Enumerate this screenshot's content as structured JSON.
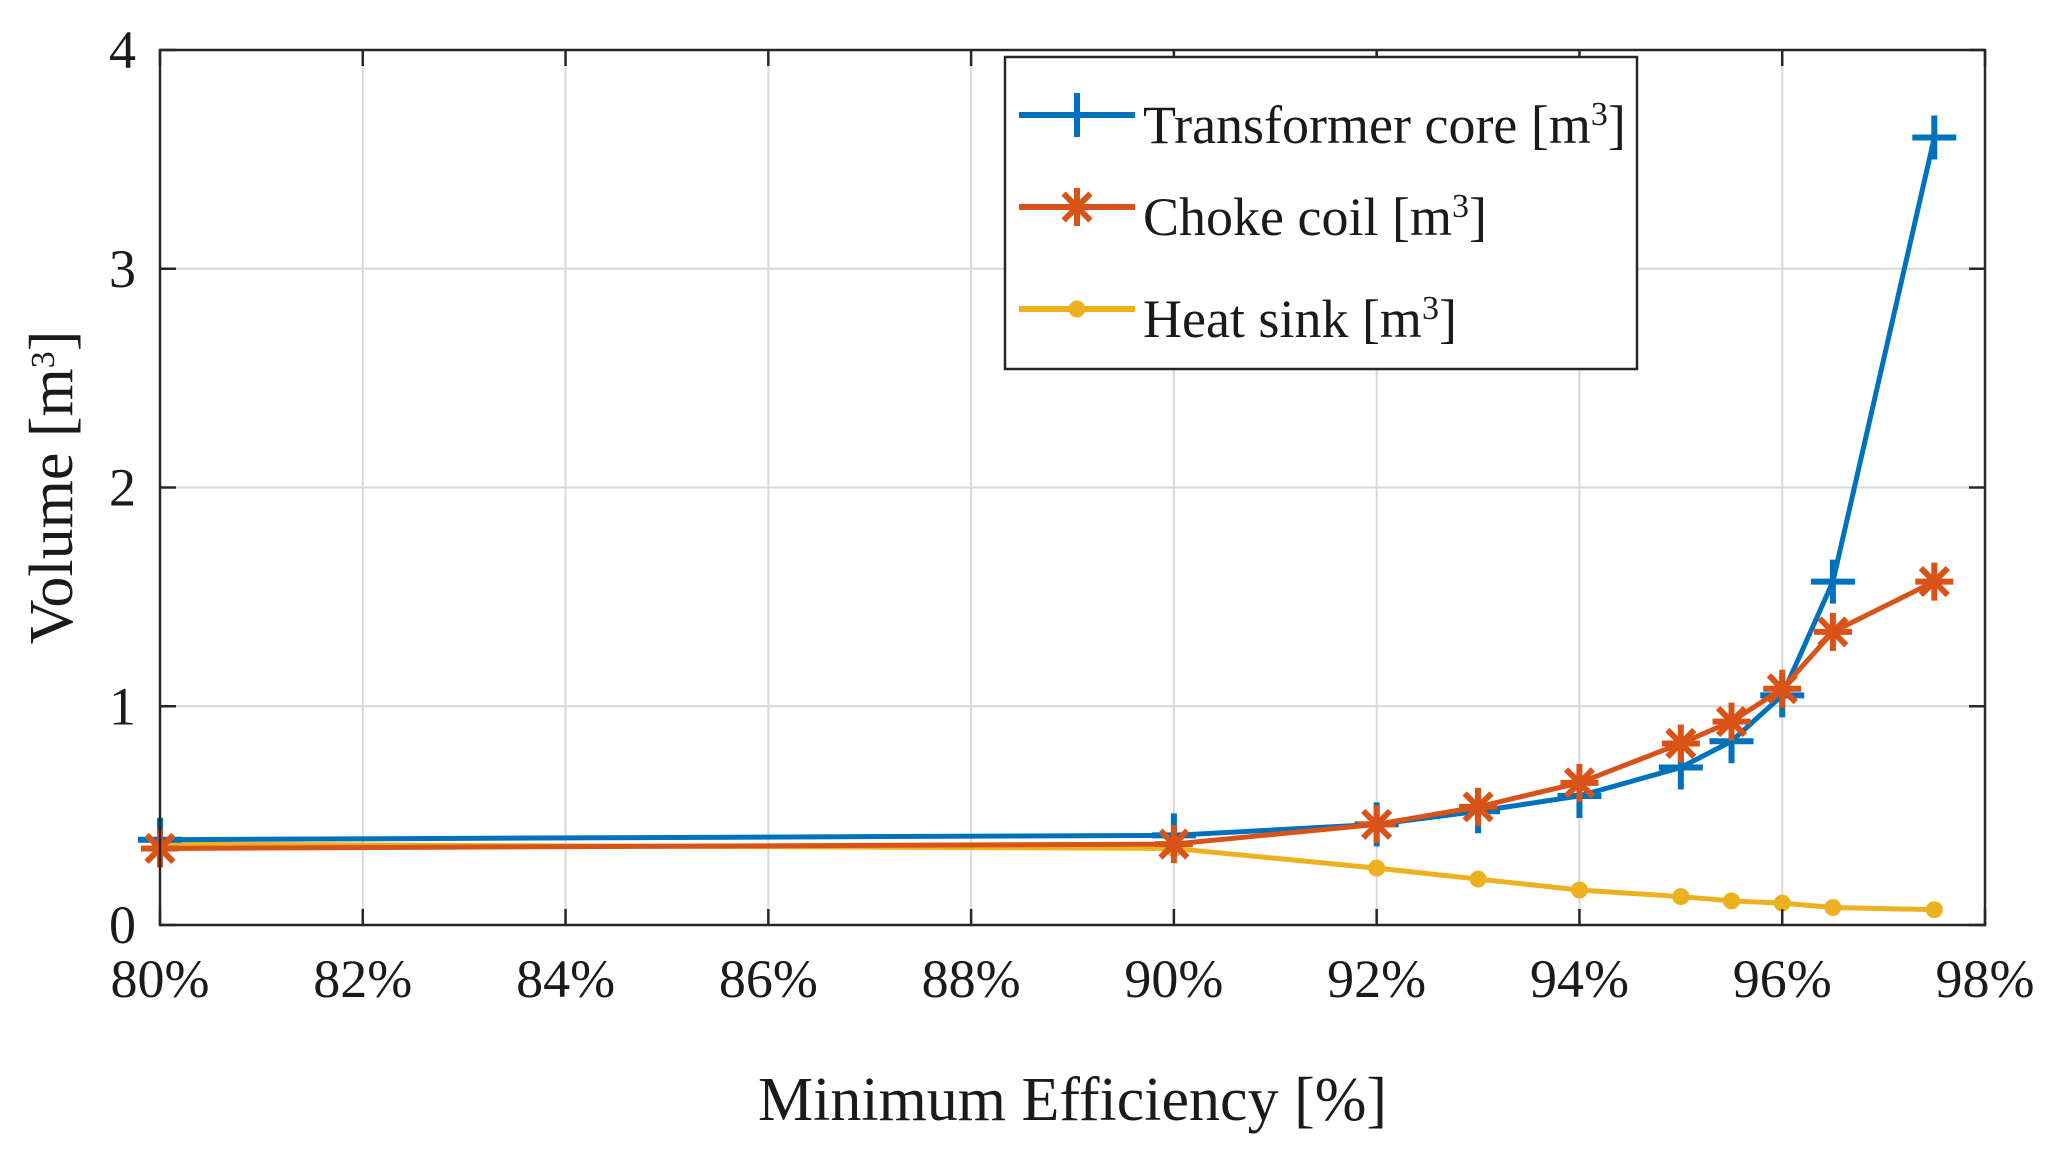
{
  "chart_data": {
    "type": "line",
    "title": "",
    "xlabel": "Minimum Efficiency [%]",
    "ylabel": "Volume [m",
    "ylabel_sup": "3",
    "ylabel_suffix": "]",
    "xlim": [
      80,
      98
    ],
    "ylim": [
      0,
      4
    ],
    "grid": true,
    "legend_position": "top-right",
    "x_ticks": [
      80,
      82,
      84,
      86,
      88,
      90,
      92,
      94,
      96,
      98
    ],
    "x_tick_labels": [
      "80%",
      "82%",
      "84%",
      "86%",
      "88%",
      "90%",
      "92%",
      "94%",
      "96%",
      "98%"
    ],
    "y_ticks": [
      0,
      1,
      2,
      3,
      4
    ],
    "y_tick_labels": [
      "0",
      "1",
      "2",
      "3",
      "4"
    ],
    "x": [
      80,
      90,
      92,
      93,
      94,
      95,
      95.5,
      96,
      96.5,
      97.5
    ],
    "series": [
      {
        "name": "Transformer core [m",
        "name_sup": "3",
        "name_suffix": "]",
        "color": "#0072BD",
        "marker": "plus",
        "values": [
          0.39,
          0.41,
          0.46,
          0.52,
          0.59,
          0.72,
          0.84,
          1.05,
          1.57,
          3.6
        ]
      },
      {
        "name": "Choke coil [m",
        "name_sup": "3",
        "name_suffix": "]",
        "color": "#D95319",
        "marker": "asterisk",
        "values": [
          0.35,
          0.37,
          0.46,
          0.54,
          0.65,
          0.83,
          0.93,
          1.08,
          1.34,
          1.57
        ]
      },
      {
        "name": "Heat sink [m",
        "name_sup": "3",
        "name_suffix": "]",
        "color": "#EDB120",
        "marker": "dot",
        "values": [
          0.37,
          0.35,
          0.26,
          0.21,
          0.16,
          0.13,
          0.11,
          0.1,
          0.08,
          0.07
        ]
      }
    ]
  }
}
